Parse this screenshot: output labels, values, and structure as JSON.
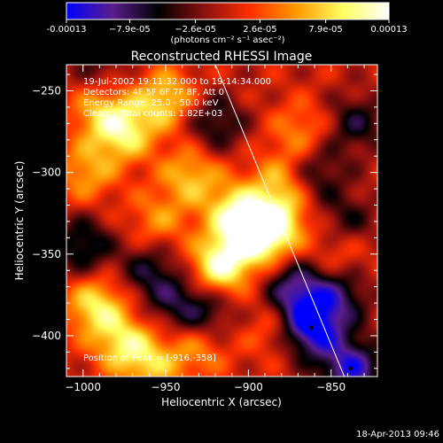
{
  "chart_data": {
    "type": "heatmap",
    "title": "Reconstructed RHESSI Image",
    "xlabel": "Heliocentric X (arcsec)",
    "ylabel": "Heliocentric Y (arcsec)",
    "xlim": [
      -1010,
      -822
    ],
    "ylim": [
      -425,
      -234
    ],
    "x_ticks": [
      -1000,
      -950,
      -900,
      -850
    ],
    "x_tick_labels": [
      "−1000",
      "−950",
      "−900",
      "−850"
    ],
    "y_ticks": [
      -250,
      -300,
      -350,
      -400
    ],
    "y_tick_labels": [
      "−250",
      "−300",
      "−350",
      "−400"
    ],
    "grid": false,
    "colorbar": {
      "min": -0.00013,
      "max": 0.00013,
      "ticks": [
        -0.00013,
        -7.9e-05,
        -2.6e-05,
        2.6e-05,
        7.9e-05,
        0.00013
      ],
      "tick_labels": [
        "-0.00013",
        "−7.9e-05",
        "−2.6e-05",
        "2.6e-05",
        "7.9e-05",
        "0.00013"
      ],
      "unit_label": "(photons cm⁻² s⁻¹ asec⁻²)",
      "colors": [
        "#0000ff",
        "#5a1e8c",
        "#000000",
        "#8c1010",
        "#ff3000",
        "#ff9a00",
        "#ffff60",
        "#ffffff"
      ]
    },
    "annotations": [
      "19-Jul-2002 19:11:32.000 to 19:14:34.000",
      "Detectors: 4F 5F 6F 7F 8F, Att 0",
      "Energy Range: 25.0 - 50.0 keV",
      "Clean    Total counts: 1.82E+03",
      "Position of Peak = [-916,-358]"
    ],
    "limb_line": [
      [
        -920,
        -234
      ],
      [
        -842,
        -425
      ]
    ],
    "sources": [
      {
        "x": -916,
        "y": -358,
        "value": 0.00013
      },
      {
        "x": -895,
        "y": -340,
        "value": 0.00011
      },
      {
        "x": -908,
        "y": -325,
        "value": 9e-05
      },
      {
        "x": -882,
        "y": -330,
        "value": 8e-05
      },
      {
        "x": -950,
        "y": -255,
        "value": 8e-05
      },
      {
        "x": -975,
        "y": -275,
        "value": 9e-05
      },
      {
        "x": -990,
        "y": -262,
        "value": 6e-05
      },
      {
        "x": -935,
        "y": -302,
        "value": 7e-05
      },
      {
        "x": -880,
        "y": -305,
        "value": 6e-05
      },
      {
        "x": -868,
        "y": -275,
        "value": 5e-05
      },
      {
        "x": -998,
        "y": -300,
        "value": 6e-05
      },
      {
        "x": -992,
        "y": -382,
        "value": 9e-05
      },
      {
        "x": -975,
        "y": -405,
        "value": 8e-05
      },
      {
        "x": -955,
        "y": -330,
        "value": 5e-05
      },
      {
        "x": -930,
        "y": -408,
        "value": 5e-05
      },
      {
        "x": -885,
        "y": -395,
        "value": 4e-05
      },
      {
        "x": -845,
        "y": -350,
        "value": 4e-05
      },
      {
        "x": -958,
        "y": -418,
        "value": 6e-05
      },
      {
        "x": -862,
        "y": -395,
        "value": -0.00013
      },
      {
        "x": -838,
        "y": -420,
        "value": -0.00011
      },
      {
        "x": -845,
        "y": -375,
        "value": -7e-05
      },
      {
        "x": -872,
        "y": -372,
        "value": -9e-05
      },
      {
        "x": -925,
        "y": -385,
        "value": -6e-05
      },
      {
        "x": -1000,
        "y": -345,
        "value": -7e-05
      },
      {
        "x": -960,
        "y": -360,
        "value": -6e-05
      },
      {
        "x": -945,
        "y": -380,
        "value": -5e-05
      },
      {
        "x": -905,
        "y": -360,
        "value": -2e-05
      },
      {
        "x": -860,
        "y": -300,
        "value": -6e-05
      },
      {
        "x": -835,
        "y": -270,
        "value": -6e-05
      },
      {
        "x": -920,
        "y": -270,
        "value": -6e-05
      },
      {
        "x": -840,
        "y": -330,
        "value": -5e-05
      },
      {
        "x": -990,
        "y": -235,
        "value": -4e-05
      }
    ]
  },
  "footer": {
    "timestamp": "18-Apr-2013 09:46"
  }
}
